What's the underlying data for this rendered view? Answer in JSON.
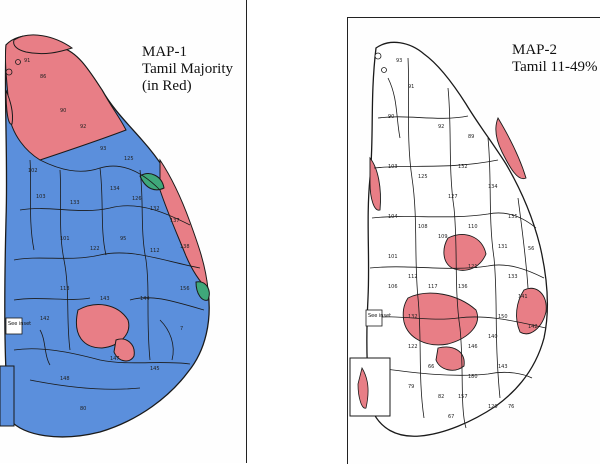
{
  "maps": [
    {
      "id": "map1",
      "title_lines": [
        "MAP-1",
        "Tamil Majority",
        "(in Red)"
      ],
      "inset_label": "See inset",
      "colors": {
        "majority": "#e87e86",
        "other": "#5b8fdc",
        "green": "#3fa87a",
        "border": "#1a1a1a"
      },
      "region_numbers": [
        "91",
        "86",
        "90",
        "92",
        "93",
        "102",
        "103",
        "133",
        "134",
        "125",
        "126",
        "132",
        "137",
        "138",
        "101",
        "122",
        "95",
        "112",
        "113",
        "143",
        "144",
        "156",
        "142",
        "147",
        "148",
        "145",
        "7",
        "80"
      ]
    },
    {
      "id": "map2",
      "title_lines": [
        "MAP-2",
        "Tamil 11-49%"
      ],
      "inset_label": "See inset",
      "colors": {
        "band": "#e87e86",
        "other": "#ffffff",
        "border": "#1a1a1a"
      },
      "region_numbers": [
        "93",
        "91",
        "90",
        "92",
        "89",
        "103",
        "125",
        "132",
        "127",
        "134",
        "135",
        "104",
        "108",
        "109",
        "110",
        "101",
        "131",
        "56",
        "121",
        "133",
        "106",
        "112",
        "117",
        "136",
        "141",
        "132",
        "150",
        "142",
        "140",
        "146",
        "122",
        "143",
        "66",
        "82",
        "79",
        "157",
        "120",
        "180",
        "67",
        "76"
      ]
    }
  ]
}
